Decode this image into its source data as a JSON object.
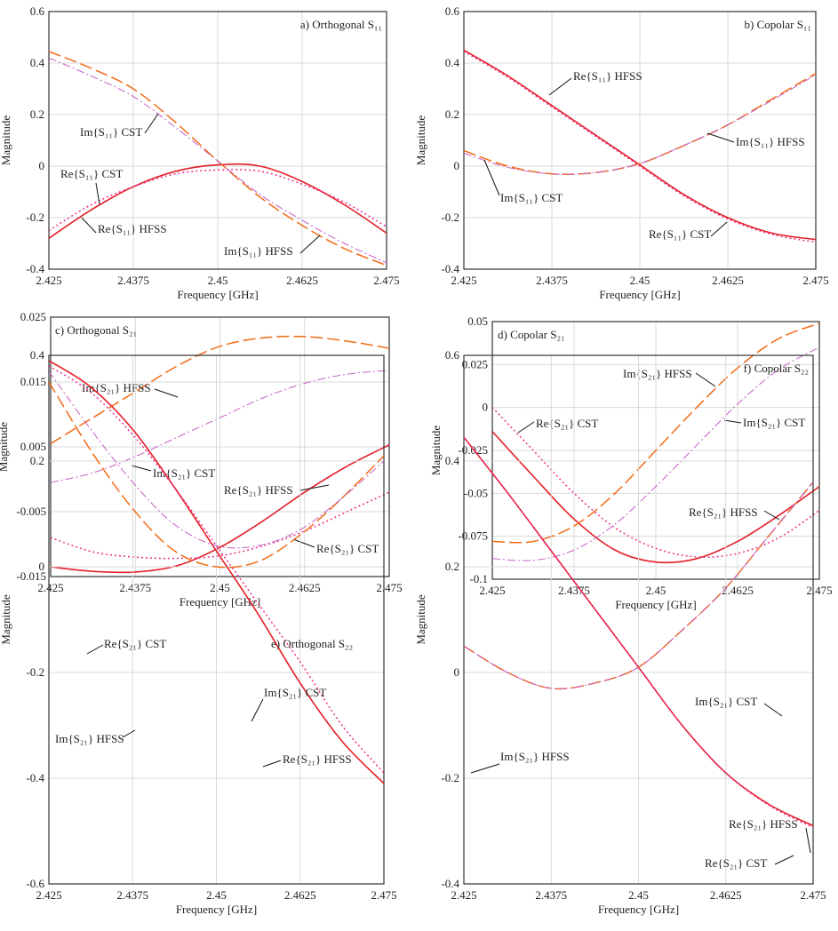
{
  "colors": {
    "re_hfss": "#e41e26",
    "re_cst": "#ee2d8c",
    "im_hfss": "#f26b16",
    "im_cst": "#c45fc6",
    "grid": "#d9d9d9",
    "axis": "#333333"
  },
  "chart_data": [
    {
      "type": "line",
      "title": "a) Orthogonal S₁₁",
      "xlabel": "Frequency [GHz]",
      "ylabel": "Magnitude",
      "xlim": [
        2.425,
        2.475
      ],
      "ylim": [
        -0.4,
        0.6
      ],
      "grid": true,
      "xticks": [
        "2.425",
        "2.4375",
        "2.45",
        "2.4625",
        "2.475"
      ],
      "yticks": [
        "-0.4",
        "-0.2",
        "0",
        "0.2",
        "0.4",
        "0.6"
      ],
      "x": [
        2.425,
        2.43125,
        2.4375,
        2.44375,
        2.45,
        2.45625,
        2.4625,
        2.46875,
        2.475
      ],
      "series": [
        {
          "key": "re_hfss",
          "values": [
            -0.28,
            -0.17,
            -0.08,
            -0.02,
            0.005,
            0.0,
            -0.06,
            -0.15,
            -0.26
          ]
        },
        {
          "key": "re_cst",
          "values": [
            -0.25,
            -0.15,
            -0.08,
            -0.03,
            -0.015,
            -0.02,
            -0.07,
            -0.14,
            -0.235
          ]
        },
        {
          "key": "im_hfss",
          "values": [
            0.445,
            0.38,
            0.3,
            0.17,
            0.02,
            -0.12,
            -0.23,
            -0.32,
            -0.385
          ]
        },
        {
          "key": "im_cst",
          "values": [
            0.42,
            0.35,
            0.27,
            0.15,
            0.02,
            -0.11,
            -0.21,
            -0.3,
            -0.375
          ]
        }
      ],
      "annotations": [
        "Im{S₁₁} CST",
        "Re{S₁₁} CST",
        "Re{S₁₁} HFSS",
        "Im{S₁₁} HFSS"
      ]
    },
    {
      "type": "line",
      "title": "b) Copolar S₁₁",
      "xlabel": "Frequency [GHz]",
      "ylabel": "Magnitude",
      "xlim": [
        2.425,
        2.475
      ],
      "ylim": [
        -0.4,
        0.6
      ],
      "grid": true,
      "xticks": [
        "2.425",
        "2.4375",
        "2.45",
        "2.4625",
        "2.475"
      ],
      "yticks": [
        "-0.4",
        "-0.2",
        "0",
        "0.2",
        "0.4",
        "0.6"
      ],
      "x": [
        2.425,
        2.43125,
        2.4375,
        2.44375,
        2.45,
        2.45625,
        2.4625,
        2.46875,
        2.475
      ],
      "series": [
        {
          "key": "re_hfss",
          "values": [
            0.45,
            0.35,
            0.235,
            0.12,
            0.005,
            -0.11,
            -0.2,
            -0.26,
            -0.285
          ]
        },
        {
          "key": "re_cst",
          "values": [
            0.445,
            0.345,
            0.23,
            0.115,
            0.0,
            -0.115,
            -0.205,
            -0.265,
            -0.295
          ]
        },
        {
          "key": "im_hfss",
          "values": [
            0.06,
            0.0,
            -0.03,
            -0.025,
            0.01,
            0.08,
            0.16,
            0.26,
            0.36
          ]
        },
        {
          "key": "im_cst",
          "values": [
            0.05,
            -0.005,
            -0.03,
            -0.025,
            0.01,
            0.08,
            0.16,
            0.255,
            0.355
          ]
        }
      ],
      "annotations": [
        "Re{S₁₁} HFSS",
        "Im{S₁₁} HFSS",
        "Im{S₁₁} CST",
        "Re{S₁₁} CST"
      ]
    },
    {
      "type": "line",
      "title": "c) Orthogonal S₂₁",
      "xlabel": "Frequency [GHz]",
      "ylabel": "Magnitude",
      "xlim": [
        2.425,
        2.475
      ],
      "ylim": [
        -0.015,
        0.025
      ],
      "grid": true,
      "xticks": [
        "2.425",
        "2.4375",
        "2.45",
        "2.4625",
        "2.475"
      ],
      "yticks": [
        "-0.015",
        "-0.005",
        "0.005",
        "0.015",
        "0.025"
      ],
      "x": [
        2.425,
        2.43125,
        2.4375,
        2.44375,
        2.45,
        2.45625,
        2.4625,
        2.46875,
        2.475
      ],
      "series": [
        {
          "key": "re_hfss",
          "values": [
            -0.0135,
            -0.0142,
            -0.0143,
            -0.0133,
            -0.0105,
            -0.0065,
            -0.002,
            0.002,
            0.0053
          ]
        },
        {
          "key": "re_cst",
          "values": [
            -0.009,
            -0.0112,
            -0.012,
            -0.0122,
            -0.0118,
            -0.0103,
            -0.008,
            -0.005,
            -0.002
          ]
        },
        {
          "key": "im_hfss",
          "values": [
            0.0055,
            0.0095,
            0.0135,
            0.0175,
            0.0205,
            0.0218,
            0.022,
            0.0213,
            0.0202
          ]
        },
        {
          "key": "im_cst",
          "values": [
            -0.0005,
            0.001,
            0.0035,
            0.0065,
            0.0095,
            0.0125,
            0.0148,
            0.0162,
            0.0168
          ]
        }
      ],
      "annotations": [
        "Im{S₂₁} HFSS",
        "Im{S₂₁} CST",
        "Re{S₂₁} HFSS",
        "Re{S₂₁} CST"
      ]
    },
    {
      "type": "line",
      "title": "d) Copolar S₂₁",
      "xlabel": "Frequency [GHz]",
      "ylabel": "Magnitude",
      "xlim": [
        2.425,
        2.475
      ],
      "ylim": [
        -0.1,
        0.05
      ],
      "grid": true,
      "xticks": [
        "2.425",
        "2.4375",
        "2.45",
        "2.4625",
        "2.475"
      ],
      "yticks": [
        "-0.1",
        "-0.075",
        "-0.05",
        "-0.025",
        "0",
        "0.025",
        "0.05"
      ],
      "x": [
        2.425,
        2.43125,
        2.4375,
        2.44375,
        2.45,
        2.45625,
        2.4625,
        2.46875,
        2.475
      ],
      "series": [
        {
          "key": "re_hfss",
          "values": [
            -0.014,
            -0.04,
            -0.065,
            -0.083,
            -0.09,
            -0.088,
            -0.078,
            -0.063,
            -0.046
          ]
        },
        {
          "key": "re_cst",
          "values": [
            0.0,
            -0.025,
            -0.05,
            -0.07,
            -0.082,
            -0.087,
            -0.085,
            -0.076,
            -0.06
          ]
        },
        {
          "key": "im_hfss",
          "values": [
            -0.078,
            -0.078,
            -0.069,
            -0.05,
            -0.025,
            0.0,
            0.023,
            0.04,
            0.049
          ]
        },
        {
          "key": "im_cst",
          "values": [
            -0.088,
            -0.089,
            -0.083,
            -0.068,
            -0.046,
            -0.022,
            0.002,
            0.022,
            0.035
          ]
        }
      ],
      "annotations": [
        "Re{S₂₁} CST",
        "Im{S₂₁} HFSS",
        "Im{S₂₁} CST",
        "Re{S₂₁} HFSS"
      ]
    },
    {
      "type": "line",
      "title": "e) Orthogonal S₂₂",
      "xlabel": "Frequency [GHz]",
      "ylabel": "Magnitude",
      "xlim": [
        2.425,
        2.475
      ],
      "ylim": [
        -0.6,
        0.4
      ],
      "grid": true,
      "xticks": [
        "2.425",
        "2.4375",
        "2.45",
        "2.4625",
        "2.475"
      ],
      "yticks": [
        "-0.6",
        "-0.4",
        "-0.2",
        "0",
        "0.2",
        "0.4"
      ],
      "x": [
        2.425,
        2.43125,
        2.4375,
        2.44375,
        2.45,
        2.45625,
        2.4625,
        2.46875,
        2.475
      ],
      "series": [
        {
          "key": "re_hfss",
          "values": [
            0.39,
            0.34,
            0.26,
            0.15,
            0.03,
            -0.09,
            -0.22,
            -0.33,
            -0.41
          ]
        },
        {
          "key": "re_cst",
          "values": [
            0.38,
            0.33,
            0.25,
            0.15,
            0.04,
            -0.07,
            -0.18,
            -0.3,
            -0.39
          ]
        },
        {
          "key": "im_hfss",
          "values": [
            0.35,
            0.22,
            0.11,
            0.03,
            0.0,
            0.01,
            0.06,
            0.13,
            0.21
          ]
        },
        {
          "key": "im_cst",
          "values": [
            0.37,
            0.26,
            0.16,
            0.08,
            0.04,
            0.04,
            0.07,
            0.13,
            0.2
          ]
        }
      ],
      "annotations": [
        "Re{S₂₁} CST",
        "Im{S₂₁} CST",
        "Im{S₂₁} HFSS",
        "Re{S₂₁} HFSS"
      ]
    },
    {
      "type": "line",
      "title": "f) Copolar S₂₂",
      "xlabel": "Frequency [GHz]",
      "ylabel": "Magnitude",
      "xlim": [
        2.425,
        2.475
      ],
      "ylim": [
        -0.4,
        0.6
      ],
      "grid": true,
      "xticks": [
        "2.425",
        "2.4375",
        "2.45",
        "2.4625",
        "2.475"
      ],
      "yticks": [
        "-0.4",
        "-0.2",
        "0",
        "0.2",
        "0.4",
        "0.6"
      ],
      "x": [
        2.425,
        2.43125,
        2.4375,
        2.44375,
        2.45,
        2.45625,
        2.4625,
        2.46875,
        2.475
      ],
      "series": [
        {
          "key": "re_hfss",
          "values": [
            0.445,
            0.34,
            0.23,
            0.12,
            0.01,
            -0.1,
            -0.19,
            -0.25,
            -0.29
          ]
        },
        {
          "key": "re_cst",
          "values": [
            0.445,
            0.34,
            0.23,
            0.12,
            0.01,
            -0.1,
            -0.19,
            -0.252,
            -0.293
          ]
        },
        {
          "key": "im_hfss",
          "values": [
            0.05,
            0.0,
            -0.03,
            -0.02,
            0.01,
            0.08,
            0.16,
            0.26,
            0.36
          ]
        },
        {
          "key": "im_cst",
          "values": [
            0.05,
            0.0,
            -0.03,
            -0.02,
            0.01,
            0.08,
            0.16,
            0.26,
            0.36
          ]
        }
      ],
      "annotations": [
        "Im{S₂₁} CST",
        "Im{S₂₁} HFSS",
        "Re{S₂₁} HFSS",
        "Re{S₂₁} CST"
      ]
    }
  ]
}
